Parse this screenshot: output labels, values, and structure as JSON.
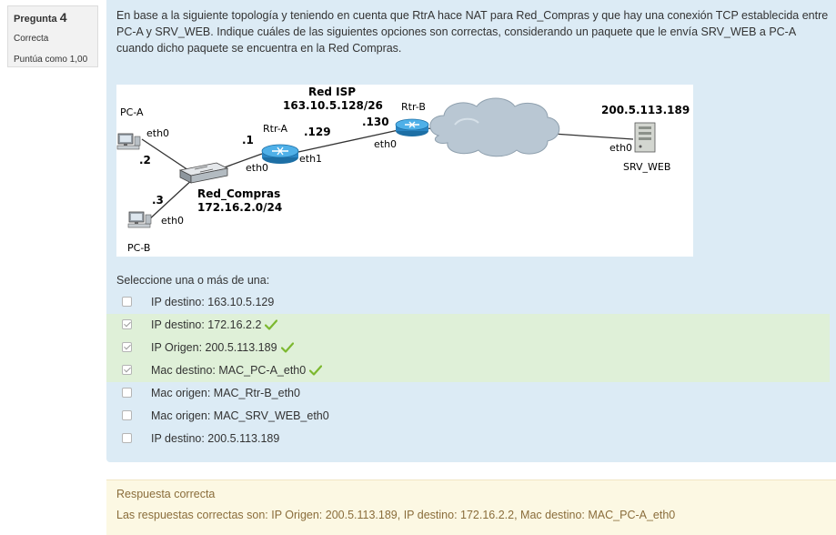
{
  "info": {
    "question_prefix": "Pregunta",
    "question_number": "4",
    "state": "Correcta",
    "grade": "Puntúa como 1,00"
  },
  "question_text": "En base a la siguiente topología y teniendo en cuenta que RtrA hace NAT para Red_Compras y que hay una conexión TCP establecida entre PC-A y SRV_WEB. Indique cuáles de las siguientes opciones son correctas, considerando un paquete que le envía SRV_WEB a PC-A cuando dicho paquete se encuentra en la Red Compras.",
  "diagram": {
    "pc_a": "PC-A",
    "pc_a_iface": "eth0",
    "pc_a_ip": ".2",
    "pc_b": "PC-B",
    "pc_b_iface": "eth0",
    "pc_b_ip": ".3",
    "rtr_a": "Rtr-A",
    "rtr_a_lan_ip": ".1",
    "rtr_a_lan_iface": "eth0",
    "rtr_a_wan_ip": ".129",
    "rtr_a_wan_iface": "eth1",
    "rtr_b": "Rtr-B",
    "rtr_b_ip": ".130",
    "rtr_b_iface": "eth0",
    "isp_name": "Red ISP",
    "isp_net": "163.10.5.128/26",
    "lan_name": "Red_Compras",
    "lan_net": "172.16.2.0/24",
    "srv_ip": "200.5.113.189",
    "srv_iface": "eth0",
    "srv_name": "SRV_WEB"
  },
  "prompt": "Seleccione una o más de una:",
  "options": [
    {
      "label": "IP destino: 163.10.5.129",
      "checked": false,
      "correct": false
    },
    {
      "label": "IP destino: 172.16.2.2",
      "checked": true,
      "correct": true
    },
    {
      "label": "IP Origen: 200.5.113.189",
      "checked": true,
      "correct": true
    },
    {
      "label": "Mac destino: MAC_PC-A_eth0",
      "checked": true,
      "correct": true
    },
    {
      "label": "Mac origen: MAC_Rtr-B_eth0",
      "checked": false,
      "correct": false
    },
    {
      "label": "Mac origen: MAC_SRV_WEB_eth0",
      "checked": false,
      "correct": false
    },
    {
      "label": "IP destino: 200.5.113.189",
      "checked": false,
      "correct": false
    }
  ],
  "feedback": {
    "result": "Respuesta correcta",
    "answer": "Las respuestas correctas son: IP Origen: 200.5.113.189, IP destino: 172.16.2.2, Mac destino: MAC_PC-A_eth0"
  },
  "colors": {
    "panel_bg": "#dcebf5",
    "correct_bg": "#dff0d8",
    "tick": "#7cb82f",
    "feedback_bg": "#fcf8e3",
    "feedback_text": "#8a6d3b"
  }
}
